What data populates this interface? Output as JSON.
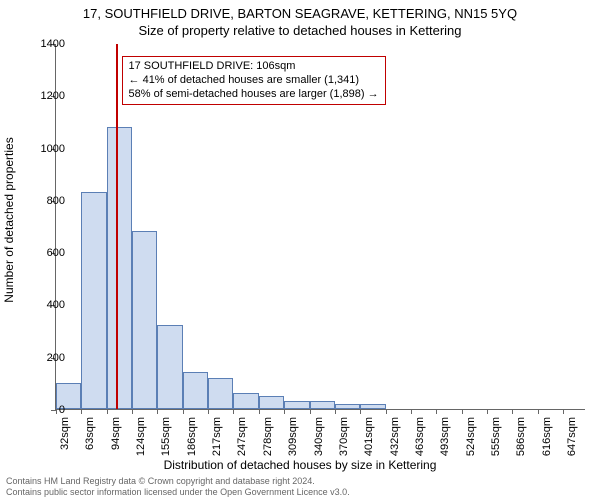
{
  "title_main": "17, SOUTHFIELD DRIVE, BARTON SEAGRAVE, KETTERING, NN15 5YQ",
  "title_sub": "Size of property relative to detached houses in Kettering",
  "ylabel": "Number of detached properties",
  "xlabel": "Distribution of detached houses by size in Kettering",
  "chart": {
    "type": "histogram",
    "ylim": [
      0,
      1400
    ],
    "ytick_step": 200,
    "yticks": [
      0,
      200,
      400,
      600,
      800,
      1000,
      1200,
      1400
    ],
    "categories": [
      "32sqm",
      "63sqm",
      "94sqm",
      "124sqm",
      "155sqm",
      "186sqm",
      "217sqm",
      "247sqm",
      "278sqm",
      "309sqm",
      "340sqm",
      "370sqm",
      "401sqm",
      "432sqm",
      "463sqm",
      "493sqm",
      "524sqm",
      "555sqm",
      "586sqm",
      "616sqm",
      "647sqm"
    ],
    "values": [
      100,
      830,
      1080,
      680,
      320,
      140,
      120,
      60,
      50,
      30,
      30,
      20,
      20,
      0,
      0,
      0,
      0,
      0,
      0,
      0,
      0
    ],
    "bar_fill": "#cfdcf0",
    "bar_stroke": "#5b7fb5",
    "axis_color": "#666666",
    "background_color": "#ffffff",
    "marker_line_color": "#c00000",
    "marker_value": 106,
    "bin_start": 32,
    "bin_width": 31,
    "xmin": 32,
    "xmax": 680,
    "tick_fontsize": 11,
    "label_fontsize": 12
  },
  "annotation": {
    "line1": "17 SOUTHFIELD DRIVE: 106sqm",
    "line2": "← 41% of detached houses are smaller (1,341)",
    "line3": "58% of semi-detached houses are larger (1,898) →",
    "border_color": "#c00000"
  },
  "footer": {
    "line1": "Contains HM Land Registry data © Crown copyright and database right 2024.",
    "line2": "Contains public sector information licensed under the Open Government Licence v3.0."
  }
}
